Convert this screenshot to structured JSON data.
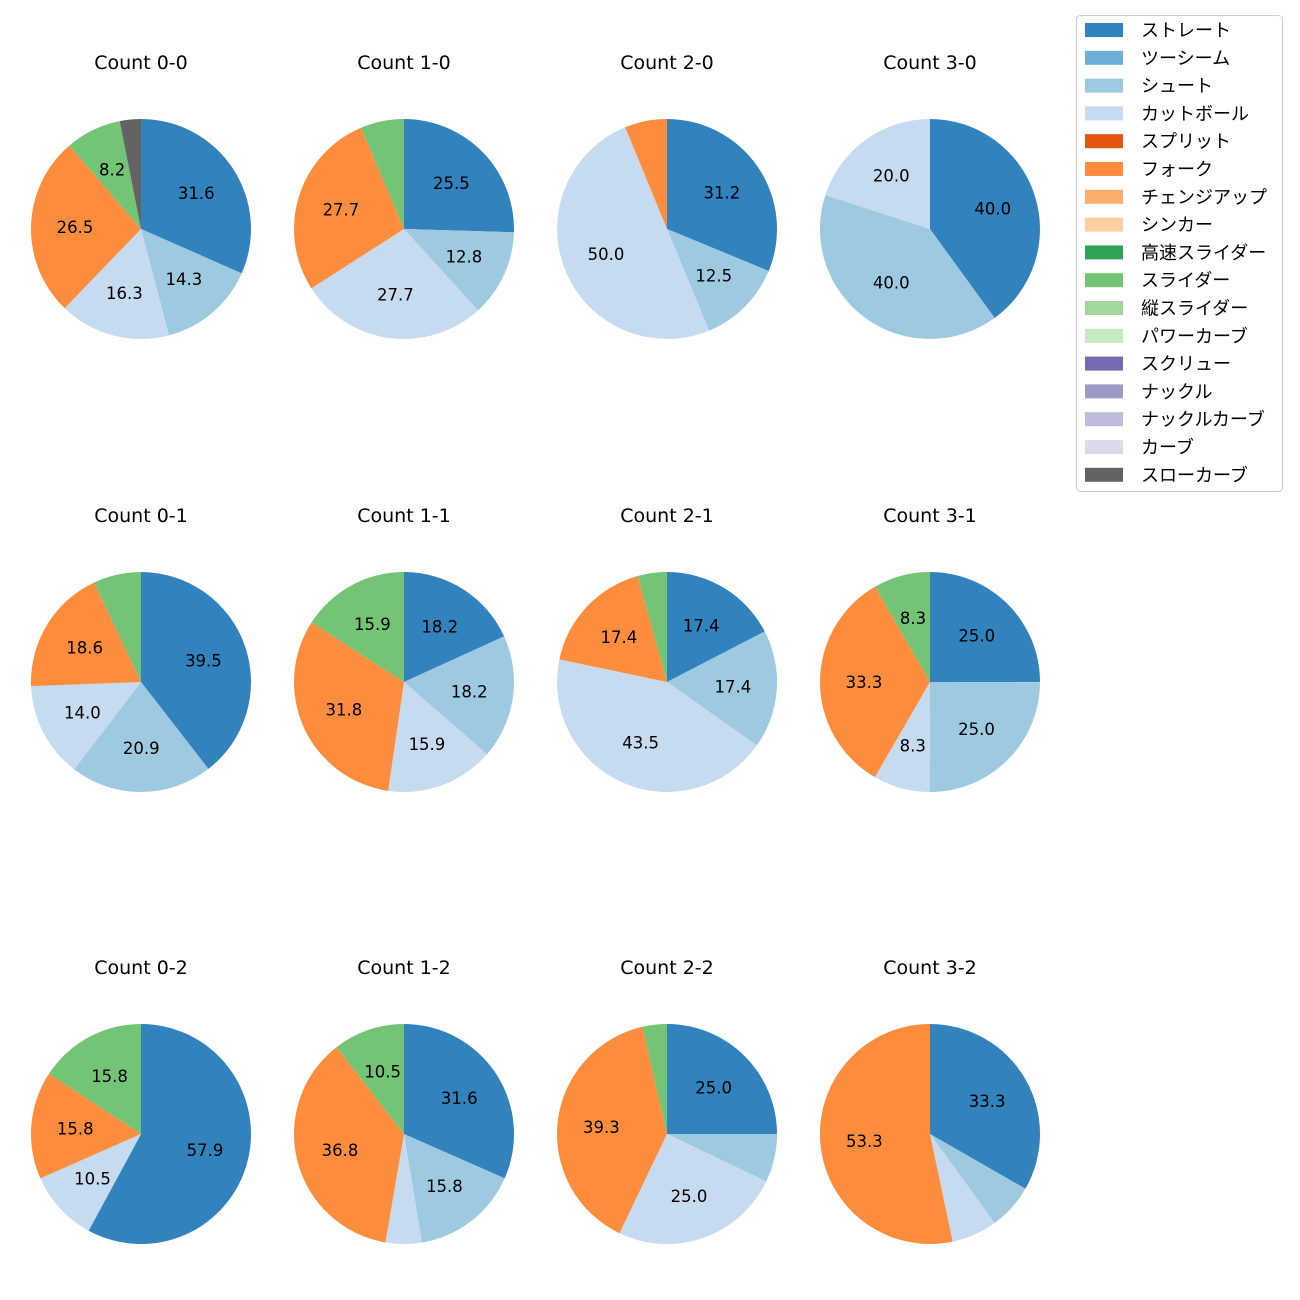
{
  "legend": {
    "entries": [
      {
        "name": "ストレート",
        "color": "#3182bd"
      },
      {
        "name": "ツーシーム",
        "color": "#6baed6"
      },
      {
        "name": "シュート",
        "color": "#9ecae1"
      },
      {
        "name": "カットボール",
        "color": "#c6dbef"
      },
      {
        "name": "スプリット",
        "color": "#e6550d"
      },
      {
        "name": "フォーク",
        "color": "#fd8d3c"
      },
      {
        "name": "チェンジアップ",
        "color": "#fdae6b"
      },
      {
        "name": "シンカー",
        "color": "#fdd0a2"
      },
      {
        "name": "高速スライダー",
        "color": "#31a354"
      },
      {
        "name": "スライダー",
        "color": "#74c476"
      },
      {
        "name": "縦スライダー",
        "color": "#a1d99b"
      },
      {
        "name": "パワーカーブ",
        "color": "#c7e9c0"
      },
      {
        "name": "スクリュー",
        "color": "#756bb1"
      },
      {
        "name": "ナックル",
        "color": "#9e9ac8"
      },
      {
        "name": "ナックルカーブ",
        "color": "#bcbddc"
      },
      {
        "name": "カーブ",
        "color": "#dadaeb"
      },
      {
        "name": "スローカーブ",
        "color": "#636363"
      }
    ]
  },
  "chart_data": [
    {
      "type": "pie",
      "title": "Count 0-0",
      "slices": [
        {
          "pitch": "ストレート",
          "value": 31.6,
          "label": "31.6"
        },
        {
          "pitch": "シュート",
          "value": 14.3,
          "label": "14.3"
        },
        {
          "pitch": "カットボール",
          "value": 16.3,
          "label": "16.3"
        },
        {
          "pitch": "フォーク",
          "value": 26.5,
          "label": "26.5"
        },
        {
          "pitch": "スライダー",
          "value": 8.2,
          "label": "8.2"
        },
        {
          "pitch": "スローカーブ",
          "value": 3.1,
          "label": ""
        }
      ]
    },
    {
      "type": "pie",
      "title": "Count 1-0",
      "slices": [
        {
          "pitch": "ストレート",
          "value": 25.5,
          "label": "25.5"
        },
        {
          "pitch": "シュート",
          "value": 12.8,
          "label": "12.8"
        },
        {
          "pitch": "カットボール",
          "value": 27.7,
          "label": "27.7"
        },
        {
          "pitch": "フォーク",
          "value": 27.7,
          "label": "27.7"
        },
        {
          "pitch": "スライダー",
          "value": 6.4,
          "label": ""
        }
      ]
    },
    {
      "type": "pie",
      "title": "Count 2-0",
      "slices": [
        {
          "pitch": "ストレート",
          "value": 31.2,
          "label": "31.2"
        },
        {
          "pitch": "シュート",
          "value": 12.5,
          "label": "12.5"
        },
        {
          "pitch": "カットボール",
          "value": 50.0,
          "label": "50.0"
        },
        {
          "pitch": "フォーク",
          "value": 6.2,
          "label": ""
        }
      ]
    },
    {
      "type": "pie",
      "title": "Count 3-0",
      "slices": [
        {
          "pitch": "ストレート",
          "value": 40.0,
          "label": "40.0"
        },
        {
          "pitch": "シュート",
          "value": 40.0,
          "label": "40.0"
        },
        {
          "pitch": "カットボール",
          "value": 20.0,
          "label": "20.0"
        }
      ]
    },
    {
      "type": "pie",
      "title": "Count 0-1",
      "slices": [
        {
          "pitch": "ストレート",
          "value": 39.5,
          "label": "39.5"
        },
        {
          "pitch": "シュート",
          "value": 20.9,
          "label": "20.9"
        },
        {
          "pitch": "カットボール",
          "value": 14.0,
          "label": "14.0"
        },
        {
          "pitch": "フォーク",
          "value": 18.6,
          "label": "18.6"
        },
        {
          "pitch": "スライダー",
          "value": 7.0,
          "label": ""
        }
      ]
    },
    {
      "type": "pie",
      "title": "Count 1-1",
      "slices": [
        {
          "pitch": "ストレート",
          "value": 18.2,
          "label": "18.2"
        },
        {
          "pitch": "シュート",
          "value": 18.2,
          "label": "18.2"
        },
        {
          "pitch": "カットボール",
          "value": 15.9,
          "label": "15.9"
        },
        {
          "pitch": "フォーク",
          "value": 31.8,
          "label": "31.8"
        },
        {
          "pitch": "スライダー",
          "value": 15.9,
          "label": "15.9"
        }
      ]
    },
    {
      "type": "pie",
      "title": "Count 2-1",
      "slices": [
        {
          "pitch": "ストレート",
          "value": 17.4,
          "label": "17.4"
        },
        {
          "pitch": "シュート",
          "value": 17.4,
          "label": "17.4"
        },
        {
          "pitch": "カットボール",
          "value": 43.5,
          "label": "43.5"
        },
        {
          "pitch": "フォーク",
          "value": 17.4,
          "label": "17.4"
        },
        {
          "pitch": "スライダー",
          "value": 4.3,
          "label": ""
        }
      ]
    },
    {
      "type": "pie",
      "title": "Count 3-1",
      "slices": [
        {
          "pitch": "ストレート",
          "value": 25.0,
          "label": "25.0"
        },
        {
          "pitch": "シュート",
          "value": 25.0,
          "label": "25.0"
        },
        {
          "pitch": "カットボール",
          "value": 8.3,
          "label": "8.3"
        },
        {
          "pitch": "フォーク",
          "value": 33.3,
          "label": "33.3"
        },
        {
          "pitch": "スライダー",
          "value": 8.3,
          "label": "8.3"
        }
      ]
    },
    {
      "type": "pie",
      "title": "Count 0-2",
      "slices": [
        {
          "pitch": "ストレート",
          "value": 57.9,
          "label": "57.9"
        },
        {
          "pitch": "カットボール",
          "value": 10.5,
          "label": "10.5"
        },
        {
          "pitch": "フォーク",
          "value": 15.8,
          "label": "15.8"
        },
        {
          "pitch": "スライダー",
          "value": 15.8,
          "label": "15.8"
        }
      ]
    },
    {
      "type": "pie",
      "title": "Count 1-2",
      "slices": [
        {
          "pitch": "ストレート",
          "value": 31.6,
          "label": "31.6"
        },
        {
          "pitch": "シュート",
          "value": 15.8,
          "label": "15.8"
        },
        {
          "pitch": "カットボール",
          "value": 5.3,
          "label": ""
        },
        {
          "pitch": "フォーク",
          "value": 36.8,
          "label": "36.8"
        },
        {
          "pitch": "スライダー",
          "value": 10.5,
          "label": "10.5"
        }
      ]
    },
    {
      "type": "pie",
      "title": "Count 2-2",
      "slices": [
        {
          "pitch": "ストレート",
          "value": 25.0,
          "label": "25.0"
        },
        {
          "pitch": "シュート",
          "value": 7.1,
          "label": ""
        },
        {
          "pitch": "カットボール",
          "value": 25.0,
          "label": "25.0"
        },
        {
          "pitch": "フォーク",
          "value": 39.3,
          "label": "39.3"
        },
        {
          "pitch": "スライダー",
          "value": 3.6,
          "label": ""
        }
      ]
    },
    {
      "type": "pie",
      "title": "Count 3-2",
      "slices": [
        {
          "pitch": "ストレート",
          "value": 33.3,
          "label": "33.3"
        },
        {
          "pitch": "シュート",
          "value": 6.7,
          "label": ""
        },
        {
          "pitch": "カットボール",
          "value": 6.7,
          "label": ""
        },
        {
          "pitch": "フォーク",
          "value": 53.3,
          "label": "53.3"
        }
      ]
    }
  ]
}
